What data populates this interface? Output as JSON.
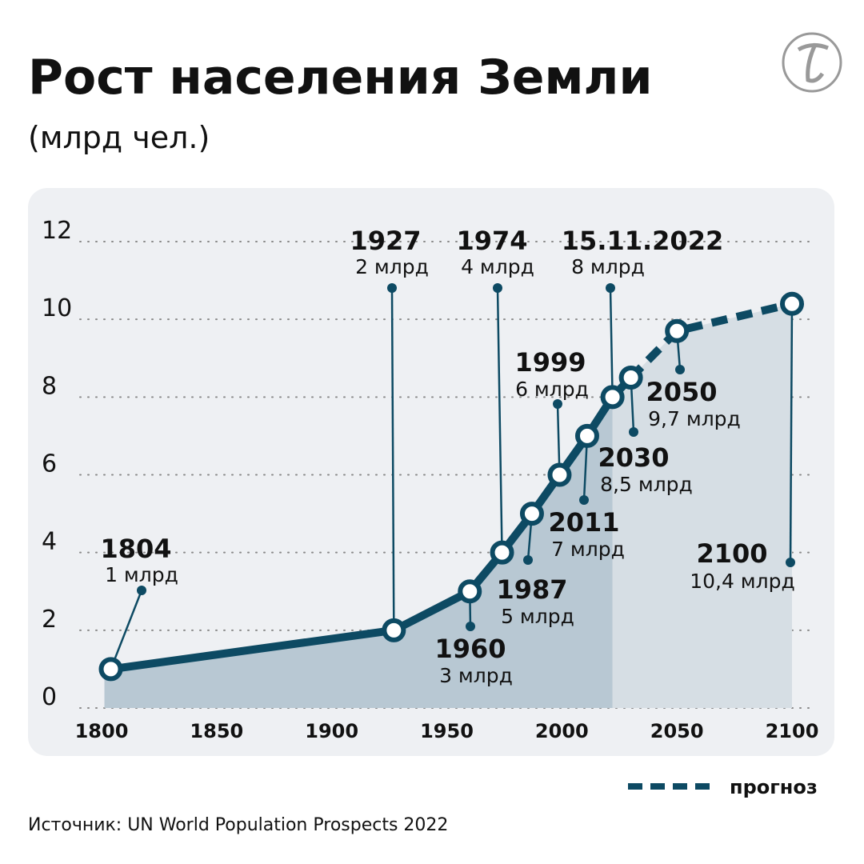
{
  "chart_data": {
    "type": "line",
    "title": "Рост населения Земли",
    "subtitle": "(млрд чел.)",
    "source": "Источник: UN World Population Prospects 2022",
    "x": [
      1804,
      1927,
      1960,
      1974,
      1987,
      1999,
      2011,
      2022,
      2030,
      2050,
      2100
    ],
    "x_labels": [
      "1804",
      "1927",
      "1960",
      "1974",
      "1987",
      "1999",
      "2011",
      "15.11.2022",
      "2030",
      "2050",
      "2100"
    ],
    "series": [
      {
        "color": "#0d4a63",
        "values": [
          1,
          2,
          3,
          4,
          5,
          6,
          7,
          8,
          8.5,
          9.7,
          10.4
        ],
        "value_labels": [
          "1 млрд",
          "2 млрд",
          "3 млрд",
          "4 млрд",
          "5 млрд",
          "6 млрд",
          "7 млрд",
          "8 млрд",
          "8,5 млрд",
          "9,7 млрд",
          "10,4 млрд"
        ]
      }
    ],
    "forecast": {
      "from": 2022,
      "label": "прогноз"
    },
    "xlim": [
      1800,
      2100
    ],
    "xticks": [
      1800,
      1850,
      1900,
      1950,
      2000,
      2050,
      2100
    ],
    "ylim": [
      0,
      12
    ],
    "yticks": [
      0,
      2,
      4,
      6,
      8,
      10,
      12
    ],
    "grid": true
  }
}
